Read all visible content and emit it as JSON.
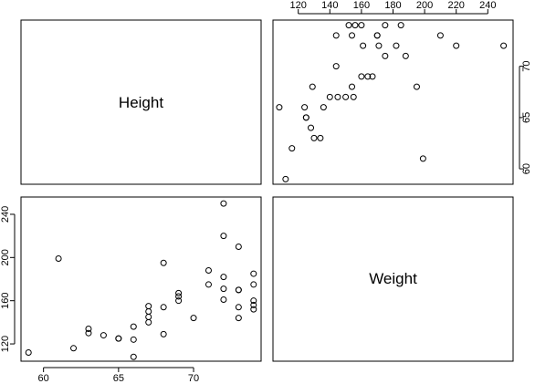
{
  "chart_data": {
    "type": "scatter",
    "variables": [
      "Height",
      "Weight"
    ],
    "labels": {
      "height": "Height",
      "weight": "Weight"
    },
    "x_ticks_bottom": [
      60,
      65,
      70
    ],
    "y_ticks_left": [
      120,
      160,
      200,
      240
    ],
    "x_ticks_top": [
      120,
      140,
      160,
      180,
      200,
      220,
      240
    ],
    "y_ticks_right": [
      60,
      65,
      70
    ],
    "height_range": [
      58.5,
      74.5
    ],
    "weight_range": [
      104,
      256
    ],
    "points": [
      {
        "height": 59,
        "weight": 112
      },
      {
        "height": 61,
        "weight": 199
      },
      {
        "height": 62,
        "weight": 116
      },
      {
        "height": 63,
        "weight": 134
      },
      {
        "height": 63,
        "weight": 130
      },
      {
        "height": 64,
        "weight": 128
      },
      {
        "height": 65,
        "weight": 125
      },
      {
        "height": 65,
        "weight": 125
      },
      {
        "height": 66,
        "weight": 108
      },
      {
        "height": 66,
        "weight": 124
      },
      {
        "height": 66,
        "weight": 136
      },
      {
        "height": 67,
        "weight": 140
      },
      {
        "height": 67,
        "weight": 145
      },
      {
        "height": 67,
        "weight": 150
      },
      {
        "height": 67,
        "weight": 155
      },
      {
        "height": 68,
        "weight": 129
      },
      {
        "height": 68,
        "weight": 154
      },
      {
        "height": 68,
        "weight": 195
      },
      {
        "height": 69,
        "weight": 160
      },
      {
        "height": 69,
        "weight": 164
      },
      {
        "height": 69,
        "weight": 167
      },
      {
        "height": 70,
        "weight": 144
      },
      {
        "height": 71,
        "weight": 175
      },
      {
        "height": 71,
        "weight": 188
      },
      {
        "height": 72,
        "weight": 161
      },
      {
        "height": 72,
        "weight": 171
      },
      {
        "height": 72,
        "weight": 182
      },
      {
        "height": 72,
        "weight": 220
      },
      {
        "height": 72,
        "weight": 250
      },
      {
        "height": 73,
        "weight": 144
      },
      {
        "height": 73,
        "weight": 154
      },
      {
        "height": 73,
        "weight": 170
      },
      {
        "height": 73,
        "weight": 210
      },
      {
        "height": 73,
        "weight": 170
      },
      {
        "height": 74,
        "weight": 152
      },
      {
        "height": 74,
        "weight": 156
      },
      {
        "height": 74,
        "weight": 160
      },
      {
        "height": 74,
        "weight": 175
      },
      {
        "height": 74,
        "weight": 185
      }
    ]
  }
}
